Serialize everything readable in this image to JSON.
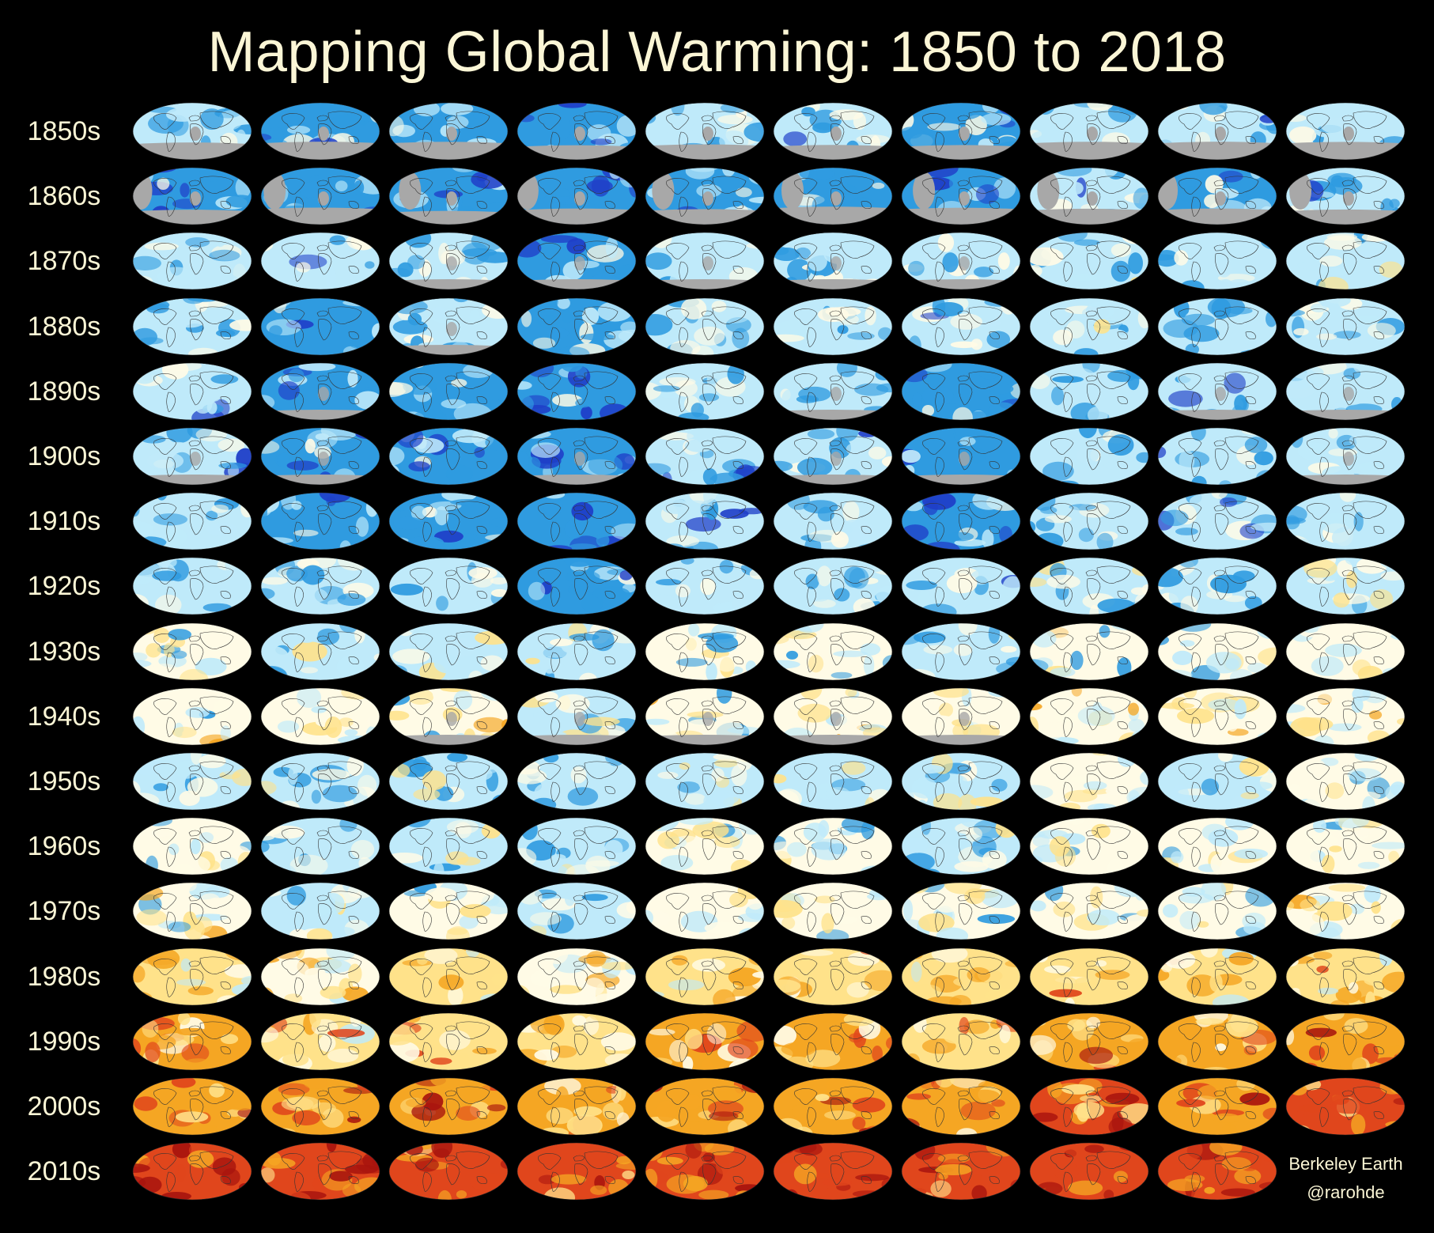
{
  "title": "Mapping Global Warming: 1850 to 2018",
  "credit": {
    "source": "Berkeley Earth",
    "author": "@rarohde"
  },
  "decades": [
    "1850s",
    "1860s",
    "1870s",
    "1880s",
    "1890s",
    "1900s",
    "1910s",
    "1920s",
    "1930s",
    "1940s",
    "1950s",
    "1960s",
    "1970s",
    "1980s",
    "1990s",
    "2000s",
    "2010s"
  ],
  "maps_per_decade": [
    10,
    10,
    10,
    10,
    10,
    10,
    10,
    10,
    10,
    10,
    10,
    10,
    10,
    10,
    10,
    10,
    9
  ],
  "colors": {
    "background": "#000000",
    "text": "#fbf6d6",
    "no_data": "#a8a8a8",
    "strong_cool": "#1f3fc8",
    "cool": "#2f9be0",
    "light_cool": "#bfeafa",
    "neutral": "#fffbe6",
    "light_warm": "#ffe28a",
    "warm": "#f5a623",
    "hot": "#e0461c",
    "very_hot": "#a8140e",
    "coastline": "#333333"
  },
  "decade_anomaly_tone": [
    -0.45,
    -0.5,
    -0.35,
    -0.4,
    -0.45,
    -0.45,
    -0.45,
    -0.35,
    -0.15,
    -0.05,
    -0.2,
    -0.15,
    -0.1,
    0.15,
    0.35,
    0.55,
    0.75
  ],
  "year_anomaly_offsets": [
    0.05,
    -0.05,
    0.02,
    -0.08,
    0.04,
    0.06,
    -0.02,
    0.1,
    0.03,
    0.12
  ],
  "no_data_rows": [
    "1850s",
    "1860s"
  ]
}
